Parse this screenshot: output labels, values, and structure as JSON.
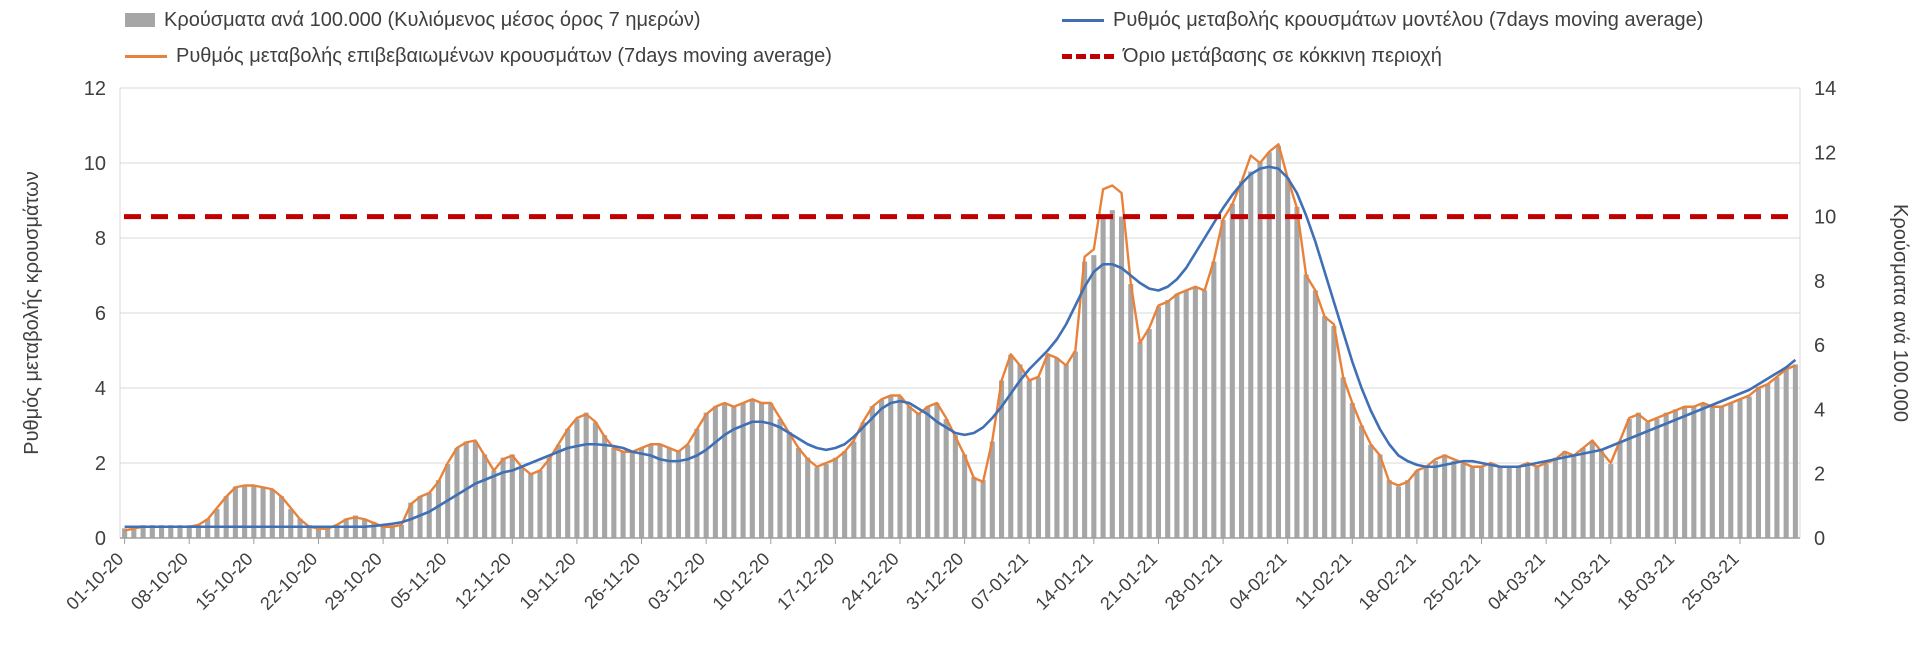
{
  "page": {
    "background": "#ffffff"
  },
  "colors": {
    "bars": "#a6a6a6",
    "model_line": "#3f6fb5",
    "confirmed_line": "#e8823a",
    "threshold_line": "#c00000",
    "grid": "#d9d9d9",
    "axis": "#9e9e9e",
    "text": "#404040"
  },
  "legend": {
    "items": [
      {
        "label": "Κρούσματα ανά 100.000 (Κυλιόμενος μέσος όρος 7 ημερών)",
        "swatch": "bar",
        "color": "#a6a6a6"
      },
      {
        "label": "Ρυθμός μεταβολής κρουσμάτων μοντέλου (7days moving average)",
        "swatch": "line",
        "color": "#3f6fb5"
      },
      {
        "label": "Ρυθμός μεταβολής επιβεβαιωμένων κρουσμάτων (7days moving average)",
        "swatch": "line",
        "color": "#e8823a"
      },
      {
        "label": "Όριο μετάβασης σε κόκκινη περιοχή",
        "swatch": "dashed-line",
        "color": "#c00000"
      }
    ]
  },
  "chart_data": {
    "type": "bar",
    "subtype": "combo-bar-line",
    "grid": true,
    "legend_position": "top",
    "left_axis": {
      "label": "Ρυθμός μεταβολής κρουσμάτων",
      "min": 0,
      "max": 12,
      "ticks": [
        0,
        2,
        4,
        6,
        8,
        10,
        12
      ]
    },
    "right_axis": {
      "label": "Κρούσματα ανά 100.000",
      "min": 0,
      "max": 14,
      "ticks": [
        0,
        2,
        4,
        6,
        8,
        10,
        12,
        14
      ]
    },
    "x_tick_labels": [
      "01-10-20",
      "08-10-20",
      "15-10-20",
      "22-10-20",
      "29-10-20",
      "05-11-20",
      "12-11-20",
      "19-11-20",
      "26-11-20",
      "03-12-20",
      "10-12-20",
      "17-12-20",
      "24-12-20",
      "31-12-20",
      "07-01-21",
      "14-01-21",
      "21-01-21",
      "28-01-21",
      "04-02-21",
      "11-02-21",
      "18-02-21",
      "25-02-21",
      "04-03-21",
      "11-03-21",
      "18-03-21",
      "25-03-21"
    ],
    "x_tick_interval": 7,
    "n_points": 182,
    "threshold": {
      "name": "Όριο μετάβασης σε κόκκινη περιοχή",
      "axis": "right",
      "value": 10
    },
    "series": [
      {
        "name": "Κρούσματα ανά 100.000 (Κυλιόμενος μέσος όρος 7 ημερών)",
        "type": "bar",
        "axis": "right",
        "values": [
          0.3,
          0.3,
          0.4,
          0.4,
          0.4,
          0.4,
          0.4,
          0.4,
          0.4,
          0.6,
          0.9,
          1.3,
          1.6,
          1.6,
          1.6,
          1.6,
          1.5,
          1.3,
          0.9,
          0.6,
          0.4,
          0.3,
          0.3,
          0.4,
          0.6,
          0.7,
          0.6,
          0.5,
          0.4,
          0.4,
          0.4,
          1.1,
          1.3,
          1.4,
          1.8,
          2.3,
          2.8,
          3.0,
          3.0,
          2.6,
          2.1,
          2.5,
          2.6,
          2.2,
          2.0,
          2.1,
          2.5,
          2.9,
          3.4,
          3.7,
          3.9,
          3.6,
          3.2,
          2.8,
          2.7,
          2.7,
          2.8,
          2.9,
          2.9,
          2.8,
          2.7,
          2.9,
          3.4,
          3.9,
          4.1,
          4.2,
          4.1,
          4.2,
          4.3,
          4.2,
          4.2,
          3.7,
          3.3,
          2.8,
          2.5,
          2.2,
          2.3,
          2.5,
          2.7,
          3.0,
          3.6,
          4.1,
          4.3,
          4.4,
          4.4,
          4.1,
          3.9,
          4.1,
          4.2,
          3.7,
          3.2,
          2.6,
          1.9,
          1.8,
          3.0,
          4.9,
          5.7,
          5.4,
          4.9,
          5.0,
          5.7,
          5.6,
          5.4,
          5.8,
          8.6,
          8.8,
          10.0,
          10.2,
          10.0,
          7.9,
          6.1,
          6.5,
          7.2,
          7.4,
          7.6,
          7.7,
          7.8,
          7.7,
          8.6,
          9.9,
          10.4,
          11.1,
          11.4,
          11.7,
          12.0,
          12.2,
          11.2,
          10.3,
          8.2,
          7.7,
          6.9,
          6.6,
          5.0,
          4.2,
          3.5,
          2.9,
          2.6,
          1.8,
          1.6,
          1.8,
          2.1,
          2.2,
          2.4,
          2.6,
          2.4,
          2.3,
          2.2,
          2.2,
          2.3,
          2.2,
          2.2,
          2.2,
          2.3,
          2.2,
          2.3,
          2.5,
          2.7,
          2.6,
          2.8,
          3.0,
          2.7,
          2.3,
          3.0,
          3.7,
          3.9,
          3.6,
          3.7,
          3.9,
          4.0,
          4.1,
          4.1,
          4.2,
          4.1,
          4.1,
          4.2,
          4.3,
          4.4,
          4.7,
          4.8,
          5.0,
          5.3,
          5.4
        ]
      },
      {
        "name": "Ρυθμός μεταβολής επιβεβαιωμένων κρουσμάτων (7days moving average)",
        "type": "line",
        "axis": "left",
        "values": [
          0.2,
          0.25,
          0.3,
          0.3,
          0.3,
          0.3,
          0.3,
          0.3,
          0.35,
          0.5,
          0.8,
          1.1,
          1.35,
          1.4,
          1.4,
          1.35,
          1.3,
          1.1,
          0.8,
          0.5,
          0.3,
          0.25,
          0.25,
          0.35,
          0.5,
          0.55,
          0.5,
          0.4,
          0.3,
          0.3,
          0.35,
          0.9,
          1.1,
          1.2,
          1.5,
          2.0,
          2.4,
          2.55,
          2.6,
          2.2,
          1.8,
          2.1,
          2.2,
          1.9,
          1.7,
          1.8,
          2.1,
          2.5,
          2.9,
          3.2,
          3.3,
          3.1,
          2.7,
          2.4,
          2.3,
          2.3,
          2.4,
          2.5,
          2.5,
          2.4,
          2.3,
          2.5,
          2.9,
          3.3,
          3.5,
          3.6,
          3.5,
          3.6,
          3.7,
          3.6,
          3.6,
          3.2,
          2.8,
          2.4,
          2.1,
          1.9,
          2.0,
          2.1,
          2.3,
          2.6,
          3.1,
          3.5,
          3.7,
          3.8,
          3.8,
          3.5,
          3.3,
          3.5,
          3.6,
          3.2,
          2.7,
          2.2,
          1.6,
          1.5,
          2.6,
          4.2,
          4.9,
          4.6,
          4.2,
          4.3,
          4.9,
          4.8,
          4.6,
          5.0,
          7.5,
          7.7,
          9.3,
          9.4,
          9.2,
          6.8,
          5.2,
          5.6,
          6.2,
          6.3,
          6.5,
          6.6,
          6.7,
          6.6,
          7.4,
          8.5,
          8.9,
          9.5,
          10.2,
          10.0,
          10.3,
          10.5,
          9.6,
          8.8,
          7.0,
          6.6,
          5.9,
          5.7,
          4.3,
          3.6,
          3.0,
          2.5,
          2.2,
          1.5,
          1.4,
          1.5,
          1.8,
          1.9,
          2.1,
          2.2,
          2.1,
          2.0,
          1.9,
          1.9,
          2.0,
          1.9,
          1.9,
          1.9,
          2.0,
          1.9,
          2.0,
          2.1,
          2.3,
          2.2,
          2.4,
          2.6,
          2.3,
          2.0,
          2.6,
          3.2,
          3.3,
          3.1,
          3.2,
          3.3,
          3.4,
          3.5,
          3.5,
          3.6,
          3.5,
          3.5,
          3.6,
          3.7,
          3.8,
          4.0,
          4.1,
          4.3,
          4.5,
          4.6
        ]
      },
      {
        "name": "Ρυθμός μεταβολής κρουσμάτων μοντέλου (7days moving average)",
        "type": "line",
        "axis": "left",
        "values": [
          0.3,
          0.3,
          0.3,
          0.3,
          0.3,
          0.3,
          0.3,
          0.3,
          0.3,
          0.3,
          0.3,
          0.3,
          0.3,
          0.3,
          0.3,
          0.3,
          0.3,
          0.3,
          0.3,
          0.3,
          0.3,
          0.3,
          0.3,
          0.3,
          0.3,
          0.3,
          0.3,
          0.32,
          0.35,
          0.38,
          0.42,
          0.5,
          0.6,
          0.7,
          0.85,
          1.0,
          1.15,
          1.3,
          1.45,
          1.55,
          1.65,
          1.75,
          1.8,
          1.9,
          2.0,
          2.1,
          2.2,
          2.3,
          2.4,
          2.45,
          2.5,
          2.5,
          2.48,
          2.45,
          2.4,
          2.3,
          2.25,
          2.2,
          2.1,
          2.05,
          2.05,
          2.1,
          2.2,
          2.35,
          2.55,
          2.75,
          2.9,
          3.0,
          3.1,
          3.1,
          3.05,
          2.95,
          2.8,
          2.65,
          2.5,
          2.4,
          2.35,
          2.4,
          2.5,
          2.7,
          2.95,
          3.2,
          3.45,
          3.6,
          3.65,
          3.6,
          3.45,
          3.3,
          3.1,
          2.95,
          2.8,
          2.75,
          2.8,
          2.95,
          3.2,
          3.5,
          3.85,
          4.2,
          4.5,
          4.75,
          5.0,
          5.3,
          5.7,
          6.2,
          6.7,
          7.1,
          7.3,
          7.3,
          7.2,
          7.0,
          6.8,
          6.65,
          6.6,
          6.7,
          6.9,
          7.2,
          7.6,
          8.0,
          8.4,
          8.8,
          9.15,
          9.45,
          9.7,
          9.85,
          9.9,
          9.85,
          9.6,
          9.2,
          8.6,
          7.9,
          7.1,
          6.3,
          5.5,
          4.7,
          4.0,
          3.4,
          2.9,
          2.5,
          2.2,
          2.05,
          1.95,
          1.9,
          1.9,
          1.95,
          2.0,
          2.05,
          2.05,
          2.0,
          1.95,
          1.9,
          1.9,
          1.9,
          1.95,
          2.0,
          2.05,
          2.1,
          2.15,
          2.2,
          2.25,
          2.3,
          2.35,
          2.45,
          2.55,
          2.65,
          2.75,
          2.85,
          2.95,
          3.05,
          3.15,
          3.25,
          3.35,
          3.45,
          3.55,
          3.65,
          3.75,
          3.85,
          3.95,
          4.1,
          4.25,
          4.4,
          4.55,
          4.75
        ]
      }
    ]
  }
}
